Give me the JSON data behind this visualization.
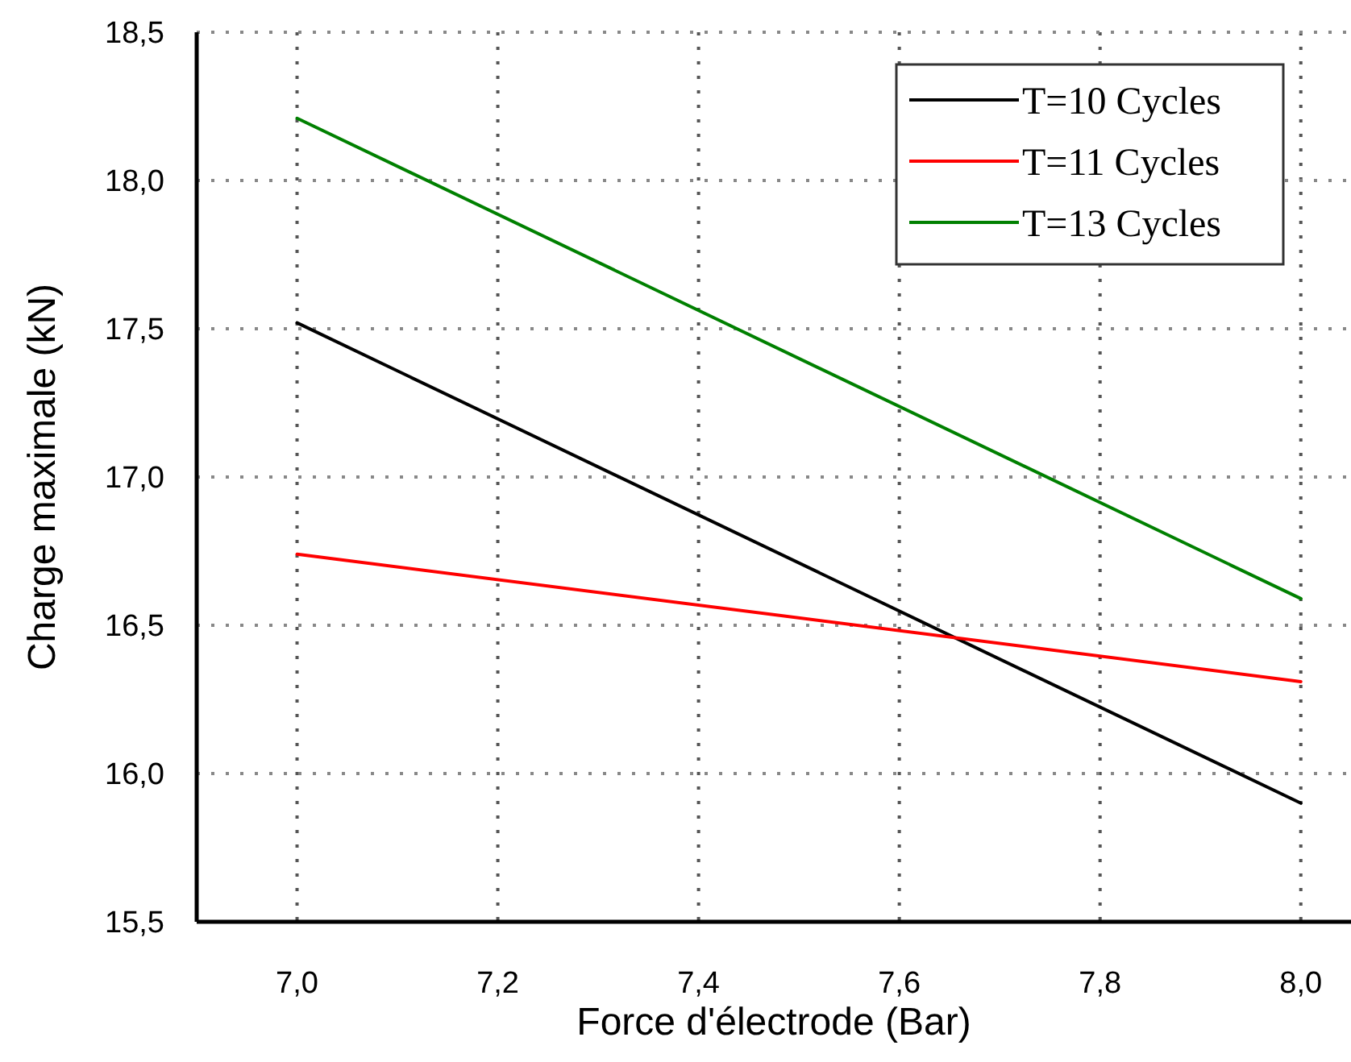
{
  "chart_data": {
    "type": "line",
    "xlabel": "Force d'électrode (Bar)",
    "ylabel": "Charge maximale (kN)",
    "x": [
      7.0,
      8.0
    ],
    "series": [
      {
        "name": "T=10 Cycles",
        "color": "#000000",
        "values": [
          17.52,
          15.9
        ]
      },
      {
        "name": "T=11 Cycles",
        "color": "#ff0000",
        "values": [
          16.74,
          16.31
        ]
      },
      {
        "name": "T=13 Cycles",
        "color": "#008000",
        "values": [
          18.21,
          16.59
        ]
      }
    ],
    "xlim": [
      6.9,
      8.05
    ],
    "ylim": [
      15.5,
      18.5
    ],
    "xticks": [
      {
        "value": 7.0,
        "label": "7,0"
      },
      {
        "value": 7.2,
        "label": "7,2"
      },
      {
        "value": 7.4,
        "label": "7,4"
      },
      {
        "value": 7.6,
        "label": "7,6"
      },
      {
        "value": 7.8,
        "label": "7,8"
      },
      {
        "value": 8.0,
        "label": "8,0"
      }
    ],
    "yticks": [
      {
        "value": 15.5,
        "label": "15,5"
      },
      {
        "value": 16.0,
        "label": "16,0"
      },
      {
        "value": 16.5,
        "label": "16,5"
      },
      {
        "value": 17.0,
        "label": "17,0"
      },
      {
        "value": 17.5,
        "label": "17,5"
      },
      {
        "value": 18.0,
        "label": "18,0"
      },
      {
        "value": 18.5,
        "label": "18,5"
      }
    ],
    "grid": true,
    "legend": "top right",
    "marker": "none",
    "line_style": "solid"
  }
}
